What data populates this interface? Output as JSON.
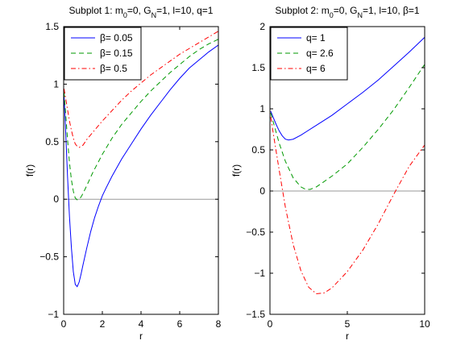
{
  "chart_data": [
    {
      "type": "line",
      "title": "Subplot 1: m0=0, GN=1, l=10, q=1",
      "title_parts": [
        {
          "t": "Subplot 1: m"
        },
        {
          "t": "0",
          "sub": true
        },
        {
          "t": "=0, G"
        },
        {
          "t": "N",
          "sub": true
        },
        {
          "t": "=1, l=10, q=1"
        }
      ],
      "xlabel": "r",
      "ylabel": "f(r)",
      "xlim": [
        0,
        8
      ],
      "ylim": [
        -1,
        1.5
      ],
      "xticks": [
        0,
        2,
        4,
        6,
        8
      ],
      "xtick_labels": [
        "0",
        "2",
        "4",
        "6",
        "8"
      ],
      "yticks": [
        -1,
        -0.5,
        0,
        0.5,
        1,
        1.5
      ],
      "ytick_labels": [
        "−1",
        "−0.5",
        "0",
        "0.5",
        "1",
        "1.5"
      ],
      "grid": false,
      "legend_position": "top-left",
      "zero_line": true,
      "series": [
        {
          "name": "β= 0.05",
          "color": "#0000ff",
          "dash": "solid",
          "points": [
            [
              0.02,
              0.9
            ],
            [
              0.1,
              0.6
            ],
            [
              0.2,
              0.2
            ],
            [
              0.3,
              -0.15
            ],
            [
              0.4,
              -0.42
            ],
            [
              0.5,
              -0.63
            ],
            [
              0.6,
              -0.74
            ],
            [
              0.7,
              -0.76
            ],
            [
              0.8,
              -0.72
            ],
            [
              0.9,
              -0.65
            ],
            [
              1.0,
              -0.57
            ],
            [
              1.2,
              -0.42
            ],
            [
              1.4,
              -0.28
            ],
            [
              1.6,
              -0.16
            ],
            [
              1.8,
              -0.06
            ],
            [
              2.0,
              0.03
            ],
            [
              2.2,
              0.1
            ],
            [
              2.5,
              0.2
            ],
            [
              3.0,
              0.35
            ],
            [
              3.5,
              0.48
            ],
            [
              4.0,
              0.61
            ],
            [
              4.5,
              0.73
            ],
            [
              5.0,
              0.84
            ],
            [
              5.5,
              0.95
            ],
            [
              6.0,
              1.05
            ],
            [
              6.5,
              1.14
            ],
            [
              7.0,
              1.21
            ],
            [
              7.5,
              1.28
            ],
            [
              8.0,
              1.34
            ]
          ]
        },
        {
          "name": "β= 0.15",
          "color": "#009900",
          "dash": "dashed",
          "points": [
            [
              0.02,
              0.93
            ],
            [
              0.1,
              0.75
            ],
            [
              0.2,
              0.52
            ],
            [
              0.3,
              0.32
            ],
            [
              0.4,
              0.17
            ],
            [
              0.5,
              0.07
            ],
            [
              0.6,
              0.01
            ],
            [
              0.7,
              -0.005
            ],
            [
              0.8,
              0.0
            ],
            [
              0.9,
              0.02
            ],
            [
              1.0,
              0.05
            ],
            [
              1.2,
              0.12
            ],
            [
              1.5,
              0.23
            ],
            [
              2.0,
              0.39
            ],
            [
              2.5,
              0.53
            ],
            [
              3.0,
              0.65
            ],
            [
              3.5,
              0.75
            ],
            [
              4.0,
              0.85
            ],
            [
              4.5,
              0.94
            ],
            [
              5.0,
              1.02
            ],
            [
              5.5,
              1.1
            ],
            [
              6.0,
              1.17
            ],
            [
              6.5,
              1.24
            ],
            [
              7.0,
              1.3
            ],
            [
              7.5,
              1.35
            ],
            [
              8.0,
              1.39
            ]
          ]
        },
        {
          "name": "β= 0.5",
          "color": "#ff0000",
          "dash": "dashdot",
          "points": [
            [
              0.02,
              0.96
            ],
            [
              0.1,
              0.88
            ],
            [
              0.2,
              0.78
            ],
            [
              0.3,
              0.68
            ],
            [
              0.4,
              0.6
            ],
            [
              0.5,
              0.53
            ],
            [
              0.6,
              0.48
            ],
            [
              0.7,
              0.46
            ],
            [
              0.8,
              0.45
            ],
            [
              0.9,
              0.46
            ],
            [
              1.0,
              0.47
            ],
            [
              1.2,
              0.52
            ],
            [
              1.5,
              0.58
            ],
            [
              2.0,
              0.68
            ],
            [
              2.5,
              0.77
            ],
            [
              3.0,
              0.86
            ],
            [
              3.5,
              0.94
            ],
            [
              4.0,
              1.01
            ],
            [
              4.5,
              1.08
            ],
            [
              5.0,
              1.14
            ],
            [
              5.5,
              1.2
            ],
            [
              6.0,
              1.26
            ],
            [
              6.5,
              1.31
            ],
            [
              7.0,
              1.36
            ],
            [
              7.5,
              1.41
            ],
            [
              8.0,
              1.46
            ]
          ]
        }
      ]
    },
    {
      "type": "line",
      "title": "Subplot 2: m0=0, GN=1, l=10, β=1",
      "title_parts": [
        {
          "t": "Subplot 2: m"
        },
        {
          "t": "0",
          "sub": true
        },
        {
          "t": "=0, G"
        },
        {
          "t": "N",
          "sub": true
        },
        {
          "t": "=1, l=10, β=1"
        }
      ],
      "xlabel": "r",
      "ylabel": "f(r)",
      "xlim": [
        0,
        10
      ],
      "ylim": [
        -1.5,
        2
      ],
      "xticks": [
        0,
        5,
        10
      ],
      "xtick_labels": [
        "0",
        "5",
        "10"
      ],
      "yticks": [
        -1.5,
        -1,
        -0.5,
        0,
        0.5,
        1,
        1.5,
        2
      ],
      "ytick_labels": [
        "−1.5",
        "−1",
        "−0.5",
        "0",
        "0.5",
        "1",
        "1.5",
        "2"
      ],
      "grid": false,
      "legend_position": "top-left",
      "zero_line": true,
      "series": [
        {
          "name": "q= 1",
          "color": "#0000ff",
          "dash": "solid",
          "points": [
            [
              0.05,
              0.97
            ],
            [
              0.2,
              0.9
            ],
            [
              0.4,
              0.81
            ],
            [
              0.6,
              0.73
            ],
            [
              0.8,
              0.67
            ],
            [
              1.0,
              0.63
            ],
            [
              1.2,
              0.62
            ],
            [
              1.5,
              0.63
            ],
            [
              2.0,
              0.68
            ],
            [
              3.0,
              0.8
            ],
            [
              4.0,
              0.92
            ],
            [
              5.0,
              1.06
            ],
            [
              6.0,
              1.2
            ],
            [
              7.0,
              1.35
            ],
            [
              8.0,
              1.52
            ],
            [
              9.0,
              1.69
            ],
            [
              10.0,
              1.87
            ]
          ]
        },
        {
          "name": "q= 2.6",
          "color": "#009900",
          "dash": "dashed",
          "points": [
            [
              0.05,
              0.95
            ],
            [
              0.3,
              0.78
            ],
            [
              0.6,
              0.58
            ],
            [
              1.0,
              0.36
            ],
            [
              1.5,
              0.16
            ],
            [
              2.0,
              0.05
            ],
            [
              2.3,
              0.02
            ],
            [
              2.6,
              0.02
            ],
            [
              3.0,
              0.05
            ],
            [
              4.0,
              0.18
            ],
            [
              5.0,
              0.33
            ],
            [
              6.0,
              0.53
            ],
            [
              7.0,
              0.75
            ],
            [
              8.0,
              0.99
            ],
            [
              9.0,
              1.26
            ],
            [
              10.0,
              1.54
            ]
          ]
        },
        {
          "name": "q= 6",
          "color": "#ff0000",
          "dash": "dashdot",
          "points": [
            [
              0.05,
              0.9
            ],
            [
              0.3,
              0.6
            ],
            [
              0.6,
              0.25
            ],
            [
              1.0,
              -0.2
            ],
            [
              1.5,
              -0.65
            ],
            [
              2.0,
              -0.97
            ],
            [
              2.5,
              -1.17
            ],
            [
              3.0,
              -1.25
            ],
            [
              3.5,
              -1.24
            ],
            [
              4.0,
              -1.18
            ],
            [
              5.0,
              -0.98
            ],
            [
              6.0,
              -0.72
            ],
            [
              7.0,
              -0.4
            ],
            [
              8.0,
              -0.04
            ],
            [
              9.0,
              0.3
            ],
            [
              10.0,
              0.56
            ]
          ]
        }
      ]
    }
  ]
}
